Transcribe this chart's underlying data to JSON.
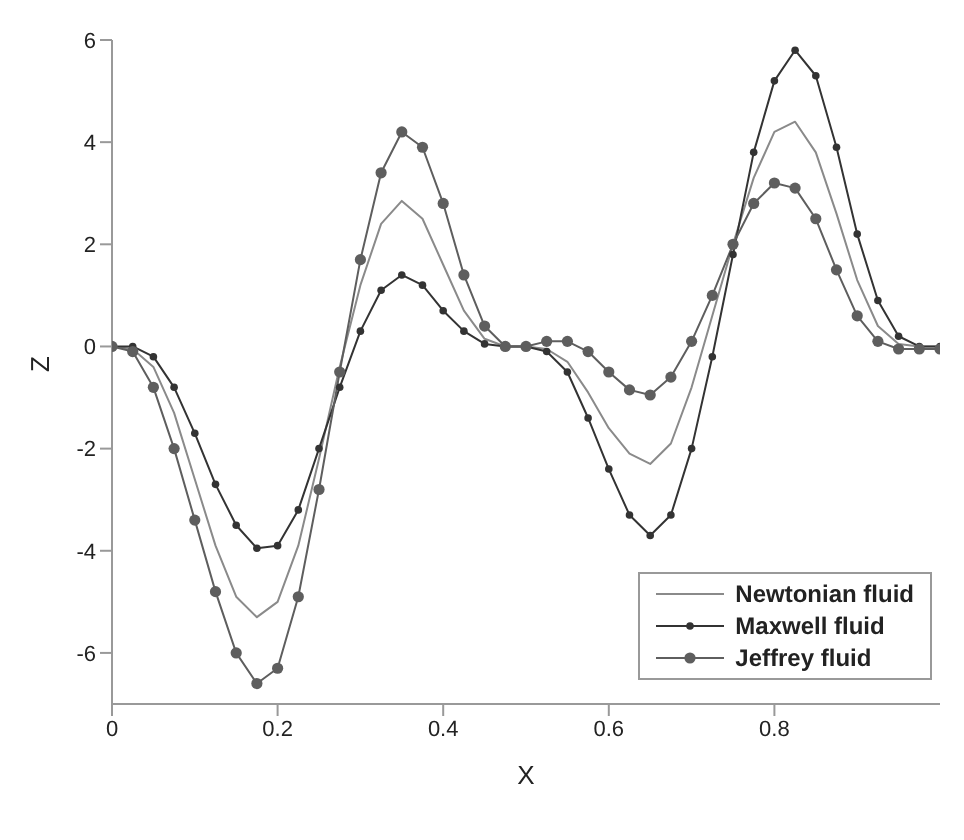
{
  "chart_data": {
    "type": "line",
    "xlabel": "X",
    "ylabel": "Z",
    "x": [
      0,
      0.025,
      0.05,
      0.075,
      0.1,
      0.125,
      0.15,
      0.175,
      0.2,
      0.225,
      0.25,
      0.275,
      0.3,
      0.325,
      0.35,
      0.375,
      0.4,
      0.425,
      0.45,
      0.475,
      0.5,
      0.525,
      0.55,
      0.575,
      0.6,
      0.625,
      0.65,
      0.675,
      0.7,
      0.725,
      0.75,
      0.775,
      0.8,
      0.825,
      0.85,
      0.875,
      0.9,
      0.925,
      0.95,
      0.975,
      1.0
    ],
    "series": [
      {
        "name": "Newtonian fluid",
        "color": "#8a8a8a",
        "marker": "none",
        "values": [
          0,
          -0.05,
          -0.4,
          -1.3,
          -2.6,
          -3.9,
          -4.9,
          -5.3,
          -5.0,
          -3.9,
          -2.2,
          -0.4,
          1.2,
          2.4,
          2.85,
          2.5,
          1.6,
          0.7,
          0.15,
          0,
          0,
          -0.05,
          -0.3,
          -0.9,
          -1.6,
          -2.1,
          -2.3,
          -1.9,
          -0.8,
          0.6,
          2.0,
          3.3,
          4.2,
          4.4,
          3.8,
          2.6,
          1.3,
          0.4,
          0.05,
          0,
          0
        ]
      },
      {
        "name": "Maxwell fluid",
        "color": "#333333",
        "marker": "circle",
        "values": [
          0,
          0,
          -0.2,
          -0.8,
          -1.7,
          -2.7,
          -3.5,
          -3.95,
          -3.9,
          -3.2,
          -2.0,
          -0.8,
          0.3,
          1.1,
          1.4,
          1.2,
          0.7,
          0.3,
          0.05,
          0,
          0,
          -0.1,
          -0.5,
          -1.4,
          -2.4,
          -3.3,
          -3.7,
          -3.3,
          -2.0,
          -0.2,
          1.8,
          3.8,
          5.2,
          5.8,
          5.3,
          3.9,
          2.2,
          0.9,
          0.2,
          0,
          0
        ]
      },
      {
        "name": "Jeffrey fluid",
        "color": "#5e5e5e",
        "marker": "circle",
        "values": [
          0,
          -0.1,
          -0.8,
          -2.0,
          -3.4,
          -4.8,
          -6.0,
          -6.6,
          -6.3,
          -4.9,
          -2.8,
          -0.5,
          1.7,
          3.4,
          4.2,
          3.9,
          2.8,
          1.4,
          0.4,
          0,
          0,
          0.1,
          0.1,
          -0.1,
          -0.5,
          -0.85,
          -0.95,
          -0.6,
          0.1,
          1.0,
          2.0,
          2.8,
          3.2,
          3.1,
          2.5,
          1.5,
          0.6,
          0.1,
          -0.05,
          -0.05,
          -0.05
        ]
      }
    ],
    "xlim": [
      0,
      1
    ],
    "xticks": [
      0,
      0.2,
      0.4,
      0.6,
      0.8
    ],
    "ylim": [
      -7,
      6
    ],
    "yticks": [
      -6,
      -4,
      -2,
      0,
      2,
      4,
      6
    ],
    "grid": false,
    "legend": "bottom right"
  }
}
